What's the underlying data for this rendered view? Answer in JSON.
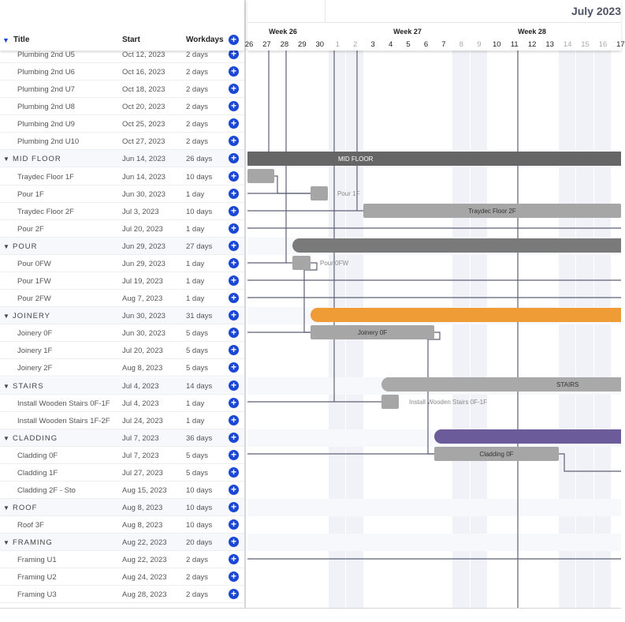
{
  "grid": {
    "sort_icon": "sort-desc-icon",
    "col_title": "Title",
    "col_start": "Start",
    "col_workdays": "Workdays",
    "add_icon": "plus-icon"
  },
  "rows": [
    {
      "title": "Plumbing 2nd U5",
      "start": "Oct 12, 2023",
      "workdays": "2 days"
    },
    {
      "title": "Plumbing 2nd U6",
      "start": "Oct 16, 2023",
      "workdays": "2 days"
    },
    {
      "title": "Plumbing 2nd U7",
      "start": "Oct 18, 2023",
      "workdays": "2 days"
    },
    {
      "title": "Plumbing 2nd U8",
      "start": "Oct 20, 2023",
      "workdays": "2 days"
    },
    {
      "title": "Plumbing 2nd U9",
      "start": "Oct 25, 2023",
      "workdays": "2 days"
    },
    {
      "title": "Plumbing 2nd U10",
      "start": "Oct 27, 2023",
      "workdays": "2 days"
    },
    {
      "title": "MID FLOOR",
      "start": "Jun 14, 2023",
      "workdays": "26 days",
      "group": true
    },
    {
      "title": "Traydec Floor 1F",
      "start": "Jun 14, 2023",
      "workdays": "10 days"
    },
    {
      "title": "Pour 1F",
      "start": "Jun 30, 2023",
      "workdays": "1 day"
    },
    {
      "title": "Traydec Floor 2F",
      "start": "Jul 3, 2023",
      "workdays": "10 days"
    },
    {
      "title": "Pour 2F",
      "start": "Jul 20, 2023",
      "workdays": "1 day"
    },
    {
      "title": "POUR",
      "start": "Jun 29, 2023",
      "workdays": "27 days",
      "group": true
    },
    {
      "title": "Pour 0FW",
      "start": "Jun 29, 2023",
      "workdays": "1 day"
    },
    {
      "title": "Pour 1FW",
      "start": "Jul 19, 2023",
      "workdays": "1 day"
    },
    {
      "title": "Pour 2FW",
      "start": "Aug 7, 2023",
      "workdays": "1 day"
    },
    {
      "title": "JOINERY",
      "start": "Jun 30, 2023",
      "workdays": "31 days",
      "group": true
    },
    {
      "title": "Joinery 0F",
      "start": "Jun 30, 2023",
      "workdays": "5 days"
    },
    {
      "title": "Joinery 1F",
      "start": "Jul 20, 2023",
      "workdays": "5 days"
    },
    {
      "title": "Joinery 2F",
      "start": "Aug 8, 2023",
      "workdays": "5 days"
    },
    {
      "title": "STAIRS",
      "start": "Jul 4, 2023",
      "workdays": "14 days",
      "group": true
    },
    {
      "title": "Install Wooden Stairs 0F-1F",
      "start": "Jul 4, 2023",
      "workdays": "1 day"
    },
    {
      "title": "Install Wooden Stairs 1F-2F",
      "start": "Jul 24, 2023",
      "workdays": "1 day"
    },
    {
      "title": "CLADDING",
      "start": "Jul 7, 2023",
      "workdays": "36 days",
      "group": true
    },
    {
      "title": "Cladding 0F",
      "start": "Jul 7, 2023",
      "workdays": "5 days"
    },
    {
      "title": "Cladding 1F",
      "start": "Jul 27, 2023",
      "workdays": "5 days"
    },
    {
      "title": "Cladding 2F - Sto",
      "start": "Aug 15, 2023",
      "workdays": "10 days"
    },
    {
      "title": "ROOF",
      "start": "Aug 8, 2023",
      "workdays": "10 days",
      "group": true
    },
    {
      "title": "Roof 3F",
      "start": "Aug 8, 2023",
      "workdays": "10 days"
    },
    {
      "title": "FRAMING",
      "start": "Aug 22, 2023",
      "workdays": "20 days",
      "group": true
    },
    {
      "title": "Framing U1",
      "start": "Aug 22, 2023",
      "workdays": "2 days"
    },
    {
      "title": "Framing U2",
      "start": "Aug 24, 2023",
      "workdays": "2 days"
    },
    {
      "title": "Framing U3",
      "start": "Aug 28, 2023",
      "workdays": "2 days"
    }
  ],
  "timeline": {
    "month": "July 2023",
    "weeks": [
      "Week 26",
      "Week 27",
      "Week 28"
    ],
    "days": [
      "26",
      "27",
      "28",
      "29",
      "30",
      "1",
      "2",
      "3",
      "4",
      "5",
      "6",
      "7",
      "8",
      "9",
      "10",
      "11",
      "12",
      "13",
      "14",
      "15",
      "16",
      "17"
    ],
    "weekend_days": [
      "1",
      "2",
      "8",
      "9",
      "14",
      "15",
      "16"
    ]
  },
  "bars": {
    "mid_floor": "MID FLOOR",
    "pour_1f": "Pour 1F",
    "traydec_2f": "Traydec Floor 2F",
    "pour_0fw": "Pour 0FW",
    "joinery_0f": "Joinery 0F",
    "stairs": "STAIRS",
    "stairs_0f1f": "Install Wooden Stairs 0F-1F",
    "cladding_0f": "Cladding 0F"
  },
  "colors": {
    "accent": "#1a47d6",
    "group_dark": "#666666",
    "joinery": "#ef9b36",
    "cladding": "#6b5b9a",
    "task": "#a6a6a6"
  }
}
